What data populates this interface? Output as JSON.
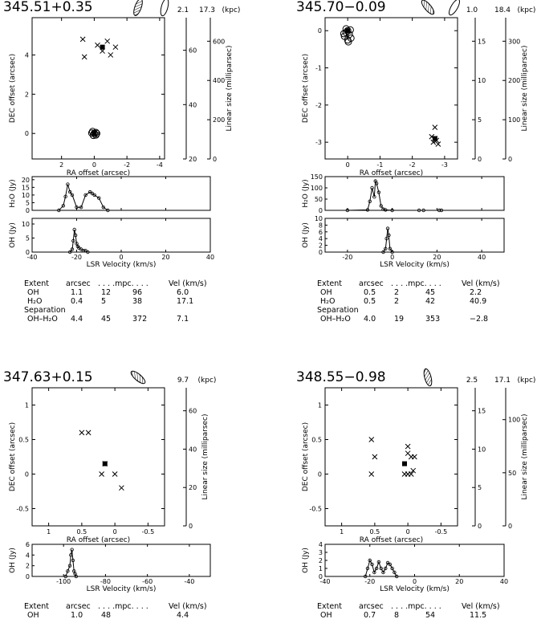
{
  "figure": {
    "panels": [
      {
        "id": "345.51+0.35",
        "title": "345.51+0.35",
        "distances": [
          "2.1",
          "17.3"
        ],
        "dist_unit": "(kpc)",
        "beam_count": 2,
        "beam_tilts": [
          20,
          15
        ],
        "sky": {
          "xlabel": "RA offset (arcsec)",
          "ylabel": "DEC offset (arcsec)",
          "ra_range": [
            3.8,
            -4.3
          ],
          "dec_range": [
            -1.3,
            5.9
          ],
          "ra_ticks": [
            "2",
            "0",
            "-2",
            "-4"
          ],
          "dec_ticks": [
            "0",
            "2",
            "4"
          ],
          "oh_positions": [
            [
              0.7,
              4.8
            ],
            [
              -0.8,
              4.7
            ],
            [
              -1.3,
              4.4
            ],
            [
              0.6,
              3.9
            ],
            [
              -0.5,
              4.2
            ],
            [
              -1.0,
              4.0
            ],
            [
              -0.2,
              4.5
            ]
          ],
          "oh_ref": [
            -0.5,
            4.4
          ],
          "h2o_positions": [
            [
              0.0,
              0.0
            ],
            [
              0.1,
              0.1
            ],
            [
              -0.1,
              0.05
            ],
            [
              0.05,
              -0.1
            ],
            [
              -0.1,
              -0.08
            ],
            [
              0.15,
              0.02
            ],
            [
              -0.15,
              0.0
            ]
          ],
          "h2o_ref": [
            0.0,
            0.0
          ],
          "scales": [
            {
              "label": "Linear size (milliparsec)",
              "ticks": [
                "20",
                "40",
                "60"
              ]
            },
            {
              "label": "Linear size (milliparsec)",
              "ticks": [
                "0",
                "200",
                "400",
                "600"
              ]
            }
          ]
        },
        "h2o_spec": {
          "ylabel": "H₂O (Jy)",
          "yticks": [
            "0",
            "5",
            "10",
            "15",
            "20"
          ],
          "ymax": 22,
          "x": [
            -28,
            -26,
            -25,
            -24,
            -23,
            -22,
            -20,
            -18,
            -16,
            -14,
            -13,
            -12,
            -10,
            -8,
            -6
          ],
          "y": [
            0,
            3,
            9,
            17,
            12,
            10,
            2,
            2,
            10,
            12,
            11,
            10,
            8,
            2,
            0
          ]
        },
        "oh_spec": {
          "ylabel": "OH (Jy)",
          "yticks": [
            "0",
            "5",
            "10"
          ],
          "ymax": 12,
          "xlabel": "LSR Velocity (km/s)",
          "xticks": [
            "-40",
            "-20",
            "0",
            "20",
            "40"
          ],
          "xrange": [
            -40,
            40
          ],
          "x": [
            -23,
            -22,
            -21.5,
            -21,
            -20.5,
            -20,
            -19.5,
            -19,
            -18,
            -17,
            -16,
            -15
          ],
          "y": [
            0,
            1,
            4,
            8,
            6,
            3,
            2,
            1.5,
            1,
            0.5,
            0.5,
            0
          ]
        },
        "table": {
          "header": [
            "Extent",
            "arcsec",
            ". . . .mpc. . . .",
            "Vel (km/s)"
          ],
          "rows": [
            [
              "OH",
              "1.1",
              "12",
              "96",
              "6.0"
            ],
            [
              "H₂O",
              "0.4",
              "5",
              "38",
              "17.1"
            ]
          ],
          "separation_label": "Separation",
          "separation_row": [
            "OH–H₂O",
            "4.4",
            "45",
            "372",
            "7.1"
          ]
        }
      },
      {
        "id": "345.70-0.09",
        "title": "345.70−0.09",
        "distances": [
          "1.0",
          "18.4"
        ],
        "dist_unit": "(kpc)",
        "beam_count": 2,
        "beam_tilts": [
          -40,
          30
        ],
        "sky": {
          "xlabel": "RA offset (arcsec)",
          "ylabel": "DEC offset (arcsec)",
          "ra_range": [
            0.7,
            -3.4
          ],
          "dec_range": [
            -3.45,
            0.35
          ],
          "ra_ticks": [
            "0",
            "-1",
            "-2",
            "-3"
          ],
          "dec_ticks": [
            "-3",
            "-2",
            "-1",
            "0"
          ],
          "oh_positions": [
            [
              -2.7,
              -2.6
            ],
            [
              -2.6,
              -2.85
            ],
            [
              -2.75,
              -2.95
            ],
            [
              -2.8,
              -3.05
            ],
            [
              -2.65,
              -3.0
            ],
            [
              -2.7,
              -2.9
            ]
          ],
          "oh_ref": [
            -2.7,
            -2.9
          ],
          "h2o_positions": [
            [
              0.0,
              0.0
            ],
            [
              0.05,
              -0.05
            ],
            [
              -0.05,
              -0.1
            ],
            [
              0.1,
              -0.15
            ],
            [
              -0.1,
              -0.2
            ],
            [
              0.0,
              -0.25
            ],
            [
              0.05,
              0.05
            ],
            [
              -0.08,
              0.02
            ],
            [
              0.12,
              -0.08
            ],
            [
              -0.02,
              -0.3
            ]
          ],
          "h2o_ref": [
            0.0,
            0.0
          ],
          "scales": [
            {
              "label": "Linear size (milliparsec)",
              "ticks": [
                "0",
                "5",
                "10",
                "15"
              ]
            },
            {
              "label": "Linear size (milliparsec)",
              "ticks": [
                "0",
                "100",
                "200",
                "300"
              ]
            }
          ]
        },
        "h2o_spec": {
          "ylabel": "H₂O (Jy)",
          "yticks": [
            "0",
            "50",
            "100",
            "150"
          ],
          "ymax": 150,
          "x": [
            -20,
            -11,
            -10,
            -9,
            -8,
            -7.5,
            -7,
            -6,
            -5,
            -4,
            -3,
            0,
            12,
            14,
            21,
            22
          ],
          "y": [
            0,
            2,
            40,
            100,
            60,
            130,
            120,
            80,
            20,
            5,
            2,
            0,
            0,
            0,
            0,
            0
          ]
        },
        "oh_spec": {
          "ylabel": "OH (Jy)",
          "yticks": [
            "0",
            "2",
            "4",
            "6",
            "8",
            "10"
          ],
          "ymax": 10,
          "xlabel": "LSR Velocity (km/s)",
          "xticks": [
            "-20",
            "0",
            "20",
            "40"
          ],
          "xrange": [
            -30,
            50
          ],
          "x": [
            -4,
            -3,
            -2.5,
            -2,
            -1.5,
            -1,
            0
          ],
          "y": [
            0,
            1,
            4,
            7,
            5,
            1,
            0
          ]
        },
        "table": {
          "header": [
            "Extent",
            "arcsec",
            ". . . .mpc. . . .",
            "Vel (km/s)"
          ],
          "rows": [
            [
              "OH",
              "0.5",
              "2",
              "45",
              "2.2"
            ],
            [
              "H₂O",
              "0.5",
              "2",
              "42",
              "40.9"
            ]
          ],
          "separation_label": "Separation",
          "separation_row": [
            "OH–H₂O",
            "4.0",
            "19",
            "353",
            "−2.8"
          ]
        }
      },
      {
        "id": "347.63+0.15",
        "title": "347.63+0.15",
        "distances": [
          "9.7"
        ],
        "dist_unit": "(kpc)",
        "beam_count": 1,
        "beam_tilts": [
          -50
        ],
        "sky": {
          "xlabel": "RA offset (arcsec)",
          "ylabel": "DEC offset (arcsec)",
          "ra_range": [
            1.25,
            -0.75
          ],
          "dec_range": [
            -0.75,
            1.25
          ],
          "ra_ticks": [
            "1",
            "0.5",
            "0",
            "-0.5"
          ],
          "dec_ticks": [
            "-0.5",
            "0",
            "0.5",
            "1"
          ],
          "oh_positions": [
            [
              0.5,
              0.6
            ],
            [
              0.4,
              0.6
            ],
            [
              0.15,
              0.15
            ],
            [
              0.2,
              0.0
            ],
            [
              0.0,
              0.0
            ],
            [
              -0.1,
              -0.2
            ]
          ],
          "oh_ref": [
            0.15,
            0.15
          ],
          "h2o_positions": [],
          "h2o_ref": null,
          "scales": [
            {
              "label": "Linear size (milliparsec)",
              "ticks": [
                "0",
                "20",
                "40",
                "60"
              ]
            }
          ]
        },
        "h2o_spec": null,
        "oh_spec": {
          "ylabel": "OH (Jy)",
          "yticks": [
            "0",
            "2",
            "4",
            "6"
          ],
          "ymax": 6,
          "xlabel": "LSR Velocity (km/s)",
          "xticks": [
            "-100",
            "-80",
            "-60",
            "-40"
          ],
          "xrange": [
            -115,
            -30
          ],
          "x": [
            -99,
            -98,
            -97,
            -96.5,
            -96,
            -95.5,
            -95,
            -94.5,
            -94
          ],
          "y": [
            0,
            1,
            2,
            4,
            5,
            3,
            1,
            0.5,
            0
          ]
        },
        "table": {
          "header": [
            "Extent",
            "arcsec",
            ". . . .mpc. . . .",
            "Vel (km/s)"
          ],
          "rows": [
            [
              "OH",
              "1.0",
              "48",
              "",
              "4.4"
            ]
          ],
          "separation_label": "",
          "separation_row": null
        }
      },
      {
        "id": "348.55-0.98",
        "title": "348.55−0.98",
        "distances": [
          "2.5",
          "17.1"
        ],
        "dist_unit": "(kpc)",
        "beam_count": 1,
        "beam_tilts": [
          -15
        ],
        "sky": {
          "xlabel": "RA offset (arcsec)",
          "ylabel": "DEC offset (arcsec)",
          "ra_range": [
            1.25,
            -0.75
          ],
          "dec_range": [
            -0.75,
            1.25
          ],
          "ra_ticks": [
            "1",
            "0.5",
            "0",
            "-0.5"
          ],
          "dec_ticks": [
            "-0.5",
            "0",
            "0.5",
            "1"
          ],
          "oh_positions": [
            [
              0.55,
              0.5
            ],
            [
              0.5,
              0.25
            ],
            [
              0.55,
              0.0
            ],
            [
              0.0,
              0.4
            ],
            [
              0.0,
              0.3
            ],
            [
              -0.05,
              0.25
            ],
            [
              -0.1,
              0.25
            ],
            [
              -0.05,
              0.0
            ],
            [
              0.0,
              0.0
            ],
            [
              0.05,
              0.0
            ],
            [
              -0.08,
              0.05
            ]
          ],
          "oh_ref": [
            0.05,
            0.15
          ],
          "h2o_positions": [],
          "h2o_ref": null,
          "scales": [
            {
              "label": "Linear size (milliparsec)",
              "ticks": [
                "0",
                "5",
                "10",
                "15"
              ]
            },
            {
              "label": "Linear size (milliparsec)",
              "ticks": [
                "0",
                "50",
                "100"
              ]
            }
          ]
        },
        "h2o_spec": null,
        "oh_spec": {
          "ylabel": "OH (Jy)",
          "yticks": [
            "0",
            "1",
            "2",
            "3",
            "4"
          ],
          "ymax": 4,
          "xlabel": "LSR Velocity (km/s)",
          "xticks": [
            "-40",
            "-20",
            "0",
            "20",
            "40"
          ],
          "xrange": [
            -40,
            40
          ],
          "x": [
            -22,
            -21,
            -20,
            -19,
            -18,
            -17,
            -16,
            -15,
            -14,
            -13,
            -12,
            -11,
            -10,
            -9,
            -8
          ],
          "y": [
            0,
            1,
            2,
            1.5,
            0.5,
            1,
            1.8,
            1,
            0.5,
            1,
            1.7,
            1.5,
            1,
            0.5,
            0
          ]
        },
        "table": {
          "header": [
            "Extent",
            "arcsec",
            ". . . .mpc. . . .",
            "Vel (km/s)"
          ],
          "rows": [
            [
              "OH",
              "0.7",
              "8",
              "54",
              "11.5"
            ]
          ],
          "separation_label": "",
          "separation_row": null
        }
      }
    ]
  },
  "chart_data": [
    {
      "type": "scatter",
      "title": "345.51+0.35",
      "xlabel": "RA offset (arcsec)",
      "ylabel": "DEC offset (arcsec)",
      "series": [
        {
          "name": "OH",
          "points": [
            [
              0.7,
              4.8
            ],
            [
              -0.8,
              4.7
            ],
            [
              -1.3,
              4.4
            ],
            [
              0.6,
              3.9
            ],
            [
              -0.5,
              4.2
            ],
            [
              -1.0,
              4.0
            ],
            [
              -0.2,
              4.5
            ]
          ]
        },
        {
          "name": "H₂O",
          "points": [
            [
              0.0,
              0.0
            ],
            [
              0.1,
              0.1
            ],
            [
              -0.1,
              0.05
            ],
            [
              0.05,
              -0.1
            ],
            [
              -0.1,
              -0.08
            ]
          ]
        }
      ]
    },
    {
      "type": "scatter",
      "title": "345.70−0.09",
      "xlabel": "RA offset (arcsec)",
      "ylabel": "DEC offset (arcsec)",
      "series": [
        {
          "name": "OH",
          "points": [
            [
              -2.7,
              -2.6
            ],
            [
              -2.6,
              -2.85
            ],
            [
              -2.75,
              -2.95
            ],
            [
              -2.8,
              -3.05
            ],
            [
              -2.65,
              -3.0
            ]
          ]
        },
        {
          "name": "H₂O",
          "points": [
            [
              0.0,
              0.0
            ],
            [
              0.05,
              -0.05
            ],
            [
              -0.05,
              -0.1
            ],
            [
              0.1,
              -0.15
            ],
            [
              -0.1,
              -0.2
            ],
            [
              0.0,
              -0.25
            ]
          ]
        }
      ]
    },
    {
      "type": "scatter",
      "title": "347.63+0.15",
      "xlabel": "RA offset (arcsec)",
      "ylabel": "DEC offset (arcsec)",
      "series": [
        {
          "name": "OH",
          "points": [
            [
              0.5,
              0.6
            ],
            [
              0.4,
              0.6
            ],
            [
              0.15,
              0.15
            ],
            [
              0.2,
              0.0
            ],
            [
              0.0,
              0.0
            ],
            [
              -0.1,
              -0.2
            ]
          ]
        }
      ]
    },
    {
      "type": "scatter",
      "title": "348.55−0.98",
      "xlabel": "RA offset (arcsec)",
      "ylabel": "DEC offset (arcsec)",
      "series": [
        {
          "name": "OH",
          "points": [
            [
              0.55,
              0.5
            ],
            [
              0.5,
              0.25
            ],
            [
              0.55,
              0.0
            ],
            [
              0.0,
              0.4
            ],
            [
              0.0,
              0.3
            ],
            [
              -0.05,
              0.25
            ],
            [
              -0.1,
              0.25
            ],
            [
              -0.05,
              0.0
            ],
            [
              0.0,
              0.0
            ],
            [
              0.05,
              0.0
            ]
          ]
        }
      ]
    }
  ]
}
